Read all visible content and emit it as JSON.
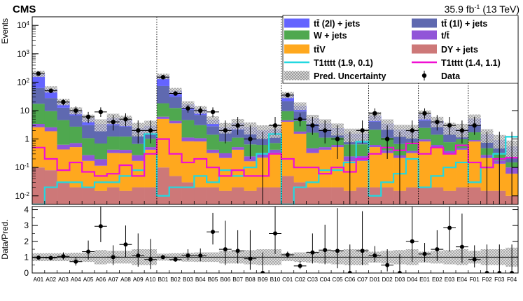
{
  "header": {
    "experiment": "CMS",
    "lumi_prefix": "35.9 fb",
    "lumi_exp": "-1",
    "lumi_suffix": " (13 TeV)"
  },
  "chart_data": [
    {
      "type": "bar",
      "subtype": "stacked-histogram",
      "ylabel": "Events",
      "yscale": "log",
      "ylim": [
        0.005,
        20000
      ],
      "y_ticks": [
        {
          "base": "10",
          "exp": "-2",
          "value": 0.01
        },
        {
          "base": "10",
          "exp": "-1",
          "value": 0.1
        },
        {
          "base": "1",
          "exp": "",
          "value": 1
        },
        {
          "base": "10",
          "exp": "",
          "value": 10
        },
        {
          "base": "10",
          "exp": "2",
          "value": 100
        },
        {
          "base": "10",
          "exp": "3",
          "value": 1000
        },
        {
          "base": "10",
          "exp": "4",
          "value": 10000
        }
      ],
      "categories": [
        "A01",
        "A02",
        "A03",
        "A04",
        "A05",
        "A06",
        "A07",
        "A08",
        "A09",
        "A10",
        "B01",
        "B02",
        "B03",
        "B04",
        "B05",
        "B06",
        "B07",
        "B08",
        "B09",
        "B10",
        "C01",
        "C02",
        "C03",
        "C04",
        "C05",
        "C06",
        "C07",
        "D01",
        "D02",
        "D03",
        "D04",
        "E01",
        "E02",
        "E03",
        "E04",
        "F01",
        "F02",
        "F03",
        "F04"
      ],
      "region_boundaries": [
        "A10|B01",
        "B10|C01",
        "C07|D01",
        "D04|E01",
        "E04|F01"
      ],
      "legend": {
        "placement": "top-right",
        "entries": [
          {
            "key": "tt2l",
            "label": "tt̄ (2l) + jets",
            "style": "fill",
            "color": "#6464ff"
          },
          {
            "key": "tt1l",
            "label": "tt̄ (1l) + jets",
            "style": "fill",
            "color": "#5f69b0"
          },
          {
            "key": "wjets",
            "label": "W + jets",
            "style": "fill",
            "color": "#4fa84f"
          },
          {
            "key": "singlet",
            "label": "t/t̄",
            "style": "fill",
            "color": "#9155d8"
          },
          {
            "key": "ttv",
            "label": "tt̄V",
            "style": "fill",
            "color": "#ffa81e"
          },
          {
            "key": "dy",
            "label": "DY + jets",
            "style": "fill",
            "color": "#cd7878"
          },
          {
            "key": "sig1",
            "label": "T1tttt (1.9, 0.1)",
            "style": "line",
            "color": "#22d8e0"
          },
          {
            "key": "sig2",
            "label": "T1tttt (1.4, 1.1)",
            "style": "line",
            "color": "#f00fd2"
          },
          {
            "key": "unc",
            "label": "Pred. Uncertainty",
            "style": "hatch",
            "color": "#999999"
          },
          {
            "key": "data",
            "label": "Data",
            "style": "marker",
            "color": "#000000"
          }
        ]
      },
      "series": [
        {
          "key": "dy",
          "color": "#cd7878",
          "values": [
            0.1,
            0.08,
            0.03,
            0.02,
            0.02,
            0.015,
            0.02,
            0.015,
            0.02,
            0.02,
            0.1,
            0.05,
            0.03,
            0.02,
            0.02,
            0.015,
            0.02,
            0.015,
            0.02,
            0.02,
            0.05,
            0.03,
            0.02,
            0.02,
            0.02,
            0.015,
            0.02,
            0.02,
            0.02,
            0.015,
            0.02,
            0.02,
            0.02,
            0.015,
            0.02,
            0.02,
            0.015,
            0.015,
            0.01
          ]
        },
        {
          "key": "ttv",
          "color": "#ffa81e",
          "values": [
            2.5,
            1.8,
            0.4,
            0.5,
            0.15,
            0.1,
            0.3,
            0.3,
            0.15,
            0.4,
            5,
            3.5,
            0.8,
            0.8,
            0.3,
            0.2,
            0.4,
            0.15,
            0.2,
            0.3,
            4,
            1.5,
            0.3,
            0.4,
            0.5,
            0.15,
            0.15,
            0.5,
            0.3,
            0.2,
            0.3,
            0.8,
            0.5,
            0.3,
            0.4,
            0.8,
            0.2,
            0.12,
            0.05
          ]
        },
        {
          "key": "singlet",
          "color": "#9155d8",
          "values": [
            0.8,
            0.7,
            0.2,
            0.2,
            0.1,
            0.08,
            0.1,
            0.1,
            0.1,
            0.1,
            1,
            0.8,
            0.3,
            0.25,
            0.1,
            0.1,
            0.1,
            0.08,
            0.1,
            0.1,
            0.5,
            0.3,
            0.15,
            0.1,
            0.1,
            0.08,
            0.08,
            0.1,
            0.08,
            0.05,
            0.06,
            0.15,
            0.1,
            0.06,
            0.06,
            0.1,
            0.06,
            0.04,
            0.04
          ]
        },
        {
          "key": "wjets",
          "color": "#4fa84f",
          "values": [
            14,
            7,
            4,
            2,
            0.8,
            0.5,
            0.8,
            0.8,
            0.4,
            0.5,
            12,
            8,
            3.5,
            2,
            1,
            0.5,
            0.6,
            0.4,
            0.3,
            0.3,
            5,
            2.5,
            1.2,
            0.6,
            0.5,
            0.4,
            0.4,
            1.5,
            0.7,
            0.4,
            0.4,
            1.5,
            0.8,
            0.4,
            0.5,
            0.8,
            0.2,
            0.15,
            0.05
          ]
        },
        {
          "key": "tt1l",
          "color": "#5f69b0",
          "values": [
            45,
            18,
            8,
            4,
            2,
            1.2,
            1.8,
            1.5,
            0.8,
            0.9,
            55,
            18,
            6,
            4,
            1.4,
            0.8,
            1,
            0.8,
            0.6,
            0.7,
            12,
            5,
            1.8,
            1.1,
            0.5,
            0.4,
            0.4,
            2,
            1,
            0.6,
            0.5,
            2,
            1.4,
            0.8,
            0.5,
            1.5,
            0.5,
            0.3,
            0.2
          ]
        },
        {
          "key": "tt2l",
          "color": "#6464ff",
          "values": [
            140,
            30,
            8,
            3.5,
            2.5,
            1.5,
            2.5,
            2,
            1,
            1,
            90,
            20,
            6,
            4,
            2,
            1,
            1.5,
            1.2,
            0.8,
            0.8,
            15,
            5.5,
            1.8,
            1.3,
            0.8,
            0.5,
            0.5,
            2.5,
            1.4,
            0.9,
            0.8,
            3,
            1.5,
            1,
            0.8,
            2,
            0.5,
            0.3,
            0.2
          ]
        }
      ],
      "signals": [
        {
          "key": "sig1",
          "color": "#22d8e0",
          "values": [
            0.005,
            0.02,
            0.03,
            0.03,
            0.02,
            0.03,
            0.03,
            0.05,
            0.08,
            1.5,
            0.01,
            0.02,
            0.02,
            0.05,
            0.03,
            0.08,
            0.05,
            0.1,
            0.3,
            1.5,
            0.005,
            0.02,
            0.03,
            0.08,
            0.08,
            0.15,
            0.8,
            0.01,
            0.03,
            0.06,
            0.2,
            0.02,
            0.05,
            0.1,
            0.15,
            0.03,
            0.1,
            0.3,
            1.2
          ]
        },
        {
          "key": "sig2",
          "color": "#f00fd2",
          "values": [
            0.5,
            0.2,
            0.08,
            0.15,
            0.07,
            0.05,
            0.06,
            0.12,
            0.05,
            0.3,
            1.0,
            0.3,
            0.15,
            0.2,
            0.1,
            0.05,
            0.08,
            0.05,
            0.05,
            0.3,
            0.2,
            0.1,
            0.1,
            0.06,
            0.1,
            0.07,
            0.2,
            0.3,
            0.5,
            0.4,
            0.7,
            0.3,
            0.5,
            0.3,
            0.6,
            0.15,
            0.1,
            0.2,
            0.22
          ]
        }
      ],
      "data": [
        {
          "y": 200,
          "err": [
            14,
            15
          ]
        },
        {
          "y": 50,
          "err": [
            7,
            7
          ]
        },
        {
          "y": 20,
          "err": [
            4.5,
            5
          ]
        },
        {
          "y": 10,
          "err": [
            3,
            4
          ]
        },
        {
          "y": 6,
          "err": [
            2.4,
            3
          ]
        },
        {
          "y": 9,
          "err": [
            3,
            4
          ]
        },
        {
          "y": 4,
          "err": [
            2,
            3
          ]
        },
        {
          "y": 5,
          "err": [
            2.2,
            3
          ]
        },
        {
          "y": 2,
          "err": [
            1.3,
            2.5
          ]
        },
        {
          "y": 2,
          "err": [
            1.3,
            2.5
          ]
        },
        {
          "y": 150,
          "err": [
            12,
            13
          ]
        },
        {
          "y": 40,
          "err": [
            6,
            7
          ]
        },
        {
          "y": 12,
          "err": [
            3.5,
            4
          ]
        },
        {
          "y": 10,
          "err": [
            3,
            4
          ]
        },
        {
          "y": 9,
          "err": [
            3,
            4
          ]
        },
        {
          "y": 2,
          "err": [
            1.3,
            2.5
          ]
        },
        {
          "y": 3,
          "err": [
            1.6,
            3
          ]
        },
        {
          "y": 1,
          "err": [
            0.8,
            2
          ]
        },
        {
          "y": 0,
          "err": [
            0,
            1.8
          ]
        },
        {
          "y": 3,
          "err": [
            1.6,
            3
          ]
        },
        {
          "y": 35,
          "err": [
            6,
            6
          ]
        },
        {
          "y": 5,
          "err": [
            2.2,
            3
          ]
        },
        {
          "y": 3,
          "err": [
            1.6,
            3
          ]
        },
        {
          "y": 2,
          "err": [
            1.3,
            2.5
          ]
        },
        {
          "y": 1,
          "err": [
            0.8,
            2
          ]
        },
        {
          "y": 0,
          "err": [
            0,
            1.8
          ]
        },
        {
          "y": 2,
          "err": [
            1.3,
            2.5
          ]
        },
        {
          "y": 8,
          "err": [
            2.8,
            4
          ]
        },
        {
          "y": 1,
          "err": [
            0.8,
            2
          ]
        },
        {
          "y": 0,
          "err": [
            0,
            1.8
          ]
        },
        {
          "y": 2,
          "err": [
            1.3,
            2.5
          ]
        },
        {
          "y": 8,
          "err": [
            2.8,
            4
          ]
        },
        {
          "y": 4,
          "err": [
            2,
            3
          ]
        },
        {
          "y": 3,
          "err": [
            1.6,
            3
          ]
        },
        {
          "y": 2,
          "err": [
            1.3,
            2.5
          ]
        },
        {
          "y": 3,
          "err": [
            1.6,
            3
          ]
        },
        {
          "y": 0,
          "err": [
            0,
            1.8
          ]
        },
        {
          "y": 0,
          "err": [
            0,
            1.8
          ]
        },
        {
          "y": 0,
          "err": [
            0,
            1.8
          ]
        }
      ],
      "pred_uncertainty": [
        0.25,
        0.25,
        0.25,
        0.28,
        0.3,
        0.45,
        0.4,
        0.4,
        0.5,
        0.5,
        0.22,
        0.25,
        0.28,
        0.3,
        0.3,
        0.4,
        0.4,
        0.45,
        0.5,
        0.5,
        0.25,
        0.3,
        0.35,
        0.4,
        0.45,
        0.5,
        0.5,
        0.35,
        0.4,
        0.45,
        0.5,
        0.35,
        0.4,
        0.45,
        0.5,
        0.4,
        0.5,
        0.5,
        0.6
      ]
    },
    {
      "type": "scatter",
      "subtype": "ratio-panel",
      "ylabel": "Data/Pred.",
      "ylim": [
        0,
        4.2
      ],
      "y_ticks": [
        "0",
        "1",
        "2",
        "3",
        "4"
      ],
      "ratio": [
        {
          "y": 0.97,
          "err": [
            0.07,
            0.07
          ]
        },
        {
          "y": 0.95,
          "err": [
            0.13,
            0.13
          ]
        },
        {
          "y": 1.05,
          "err": [
            0.2,
            0.25
          ]
        },
        {
          "y": 0.72,
          "err": [
            0.25,
            0.3
          ]
        },
        {
          "y": 1.35,
          "err": [
            0.5,
            0.7
          ]
        },
        {
          "y": 2.95,
          "err": [
            1.0,
            1.4
          ]
        },
        {
          "y": 1.0,
          "err": [
            0.5,
            0.75
          ]
        },
        {
          "y": 1.8,
          "err": [
            0.8,
            1.2
          ]
        },
        {
          "y": 1.1,
          "err": [
            0.7,
            1.4
          ]
        },
        {
          "y": 0.85,
          "err": [
            0.6,
            1.3
          ]
        },
        {
          "y": 1.0,
          "err": [
            0.08,
            0.08
          ]
        },
        {
          "y": 0.85,
          "err": [
            0.13,
            0.15
          ]
        },
        {
          "y": 1.1,
          "err": [
            0.3,
            0.4
          ]
        },
        {
          "y": 1.1,
          "err": [
            0.35,
            0.45
          ]
        },
        {
          "y": 2.6,
          "err": [
            0.8,
            1.2
          ]
        },
        {
          "y": 1.5,
          "err": [
            1.0,
            1.8
          ]
        },
        {
          "y": 1.4,
          "err": [
            0.8,
            1.3
          ]
        },
        {
          "y": 0.9,
          "err": [
            0.7,
            1.8
          ]
        },
        {
          "y": 0.0,
          "err": [
            0,
            1.3
          ]
        },
        {
          "y": 2.5,
          "err": [
            1.3,
            2.5
          ]
        },
        {
          "y": 1.15,
          "err": [
            0.2,
            0.2
          ]
        },
        {
          "y": 0.45,
          "err": [
            0.2,
            0.3
          ]
        },
        {
          "y": 1.3,
          "err": [
            0.7,
            1.2
          ]
        },
        {
          "y": 1.45,
          "err": [
            0.9,
            1.6
          ]
        },
        {
          "y": 1.4,
          "err": [
            1.1,
            2.7
          ]
        },
        {
          "y": 0.0,
          "err": [
            0,
            1.8
          ]
        },
        {
          "y": 1.4,
          "err": [
            0.9,
            2.5
          ]
        },
        {
          "y": 1.1,
          "err": [
            0.4,
            0.6
          ]
        },
        {
          "y": 0.5,
          "err": [
            0.4,
            1.0
          ]
        },
        {
          "y": 0.0,
          "err": [
            0,
            1.2
          ]
        },
        {
          "y": 2.0,
          "err": [
            1.3,
            2.5
          ]
        },
        {
          "y": 1.2,
          "err": [
            0.5,
            0.7
          ]
        },
        {
          "y": 1.5,
          "err": [
            0.75,
            1.2
          ]
        },
        {
          "y": 2.85,
          "err": [
            1.5,
            2.8
          ]
        },
        {
          "y": 1.65,
          "err": [
            1.0,
            2.1
          ]
        },
        {
          "y": 0.85,
          "err": [
            0.5,
            0.9
          ]
        },
        {
          "y": 0.0,
          "err": [
            0,
            1.8
          ]
        },
        {
          "y": 0.0,
          "err": [
            0,
            1.8
          ]
        },
        {
          "y": 0.0,
          "err": [
            0,
            1.8
          ]
        }
      ]
    }
  ]
}
